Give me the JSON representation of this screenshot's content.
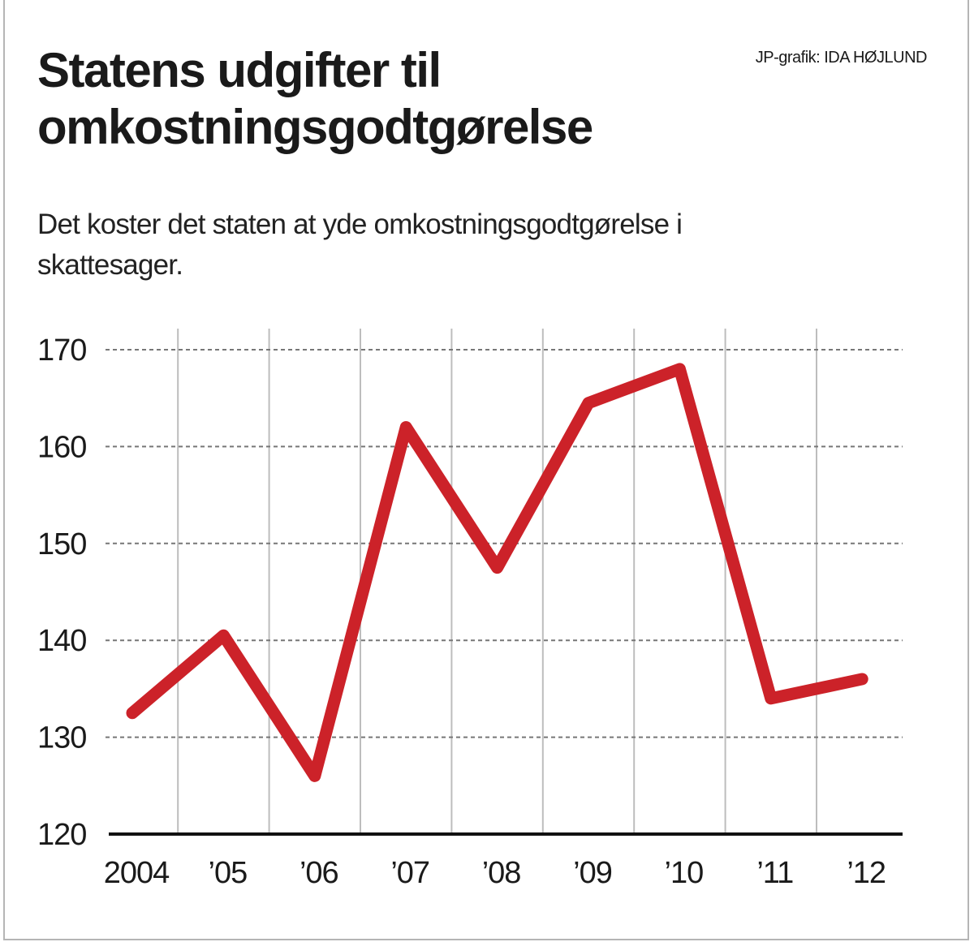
{
  "header": {
    "title": "Statens udgifter til omkostningsgodtgørelse",
    "credit": "JP-grafik: IDA HØJLUND",
    "subtitle": "Det koster det staten at yde omkostningsgodtgørelse i skattesager."
  },
  "colors": {
    "line": "#cc2229",
    "grid": "#777777",
    "vgrid": "#bdbdbd",
    "axis": "#111111"
  },
  "chart_data": {
    "type": "line",
    "categories": [
      "2004",
      "’05",
      "’06",
      "’07",
      "’08",
      "’09",
      "’10",
      "’11",
      "’12"
    ],
    "series": [
      {
        "values": [
          132.5,
          140.5,
          126,
          162,
          147.5,
          164.5,
          168,
          134,
          136
        ]
      }
    ],
    "yticks": [
      120,
      130,
      140,
      150,
      160,
      170
    ],
    "ylim": [
      120,
      170
    ],
    "grid": true,
    "legend": "none"
  }
}
